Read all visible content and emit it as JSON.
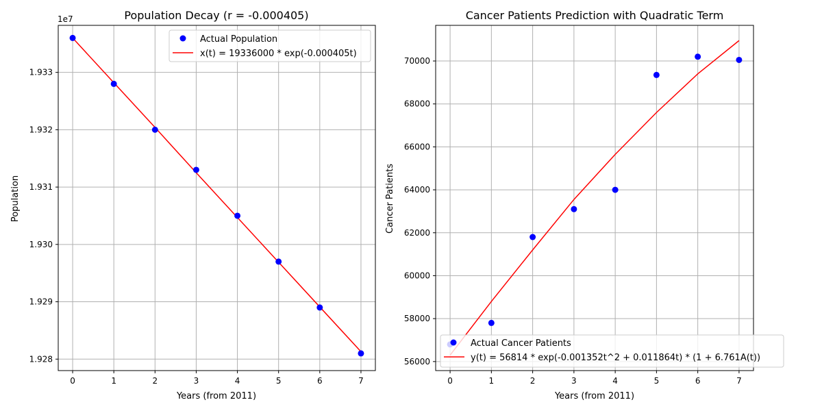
{
  "colors": {
    "points": "#0000ff",
    "fit_line": "#ff0000",
    "grid": "#b0b0b0",
    "frame": "#000000",
    "legend_border": "#cccccc"
  },
  "chart_data": [
    {
      "type": "scatter",
      "title": "Population Decay (r = -0.000405)",
      "xlabel": "Years (from 2011)",
      "ylabel": "Population",
      "y_offset_text": "1e7",
      "x_ticks": [
        "0",
        "1",
        "2",
        "3",
        "4",
        "5",
        "6",
        "7"
      ],
      "y_ticks": [
        "1.928",
        "1.929",
        "1.930",
        "1.931",
        "1.932",
        "1.933"
      ],
      "y_tick_values": [
        1.928,
        1.929,
        1.93,
        1.931,
        1.932,
        1.933
      ],
      "xlim": [
        -0.35,
        7.35
      ],
      "ylim": [
        1.9278,
        1.93382
      ],
      "grid": true,
      "legend_position": "top-right",
      "series": [
        {
          "name": "Actual Population",
          "kind": "points",
          "x": [
            0,
            1,
            2,
            3,
            4,
            5,
            6,
            7
          ],
          "y": [
            1.9336,
            1.9328,
            1.932,
            1.9313,
            1.9305,
            1.9297,
            1.9289,
            1.9281
          ]
        },
        {
          "name": "x(t) = 19336000 * exp(-0.000405t)",
          "kind": "line",
          "x": [
            0,
            1,
            2,
            3,
            4,
            5,
            6,
            7
          ],
          "y": [
            1.9336,
            1.93282,
            1.93204,
            1.93125,
            1.93047,
            1.92969,
            1.92891,
            1.92813
          ]
        }
      ]
    },
    {
      "type": "scatter",
      "title": "Cancer Patients Prediction with Quadratic Term",
      "xlabel": "Years (from 2011)",
      "ylabel": "Cancer Patients",
      "x_ticks": [
        "0",
        "1",
        "2",
        "3",
        "4",
        "5",
        "6",
        "7"
      ],
      "y_ticks": [
        "56000",
        "58000",
        "60000",
        "62000",
        "64000",
        "66000",
        "68000",
        "70000"
      ],
      "y_tick_values": [
        56000,
        58000,
        60000,
        62000,
        64000,
        66000,
        68000,
        70000
      ],
      "xlim": [
        -0.35,
        7.35
      ],
      "ylim": [
        55580,
        71660
      ],
      "grid": true,
      "legend_position": "lower-right",
      "series": [
        {
          "name": "Actual Cancer Patients",
          "kind": "points",
          "x": [
            0,
            1,
            2,
            3,
            4,
            5,
            6,
            7
          ],
          "y": [
            56800,
            57800,
            61800,
            63100,
            64000,
            69350,
            70200,
            70050
          ]
        },
        {
          "name": "y(t) = 56814 * exp(-0.001352t^2 + 0.011864t) * (1 + 6.761A(t))",
          "kind": "line",
          "x": [
            0,
            1,
            2,
            3,
            4,
            5,
            6,
            7
          ],
          "y": [
            56300,
            58800,
            61200,
            63550,
            65650,
            67600,
            69400,
            70950
          ]
        }
      ]
    }
  ]
}
